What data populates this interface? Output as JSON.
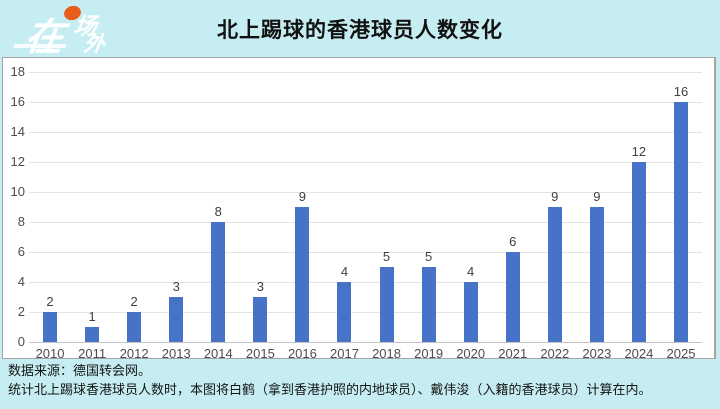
{
  "logo": {
    "char_main": "在",
    "char_2": "场",
    "char_3": "外"
  },
  "header": {
    "title": "北上踢球的香港球员人数变化"
  },
  "chart_data": {
    "type": "bar",
    "title": "北上踢球的香港球员人数变化",
    "categories": [
      "2010",
      "2011",
      "2012",
      "2013",
      "2014",
      "2015",
      "2016",
      "2017",
      "2018",
      "2019",
      "2020",
      "2021",
      "2022",
      "2023",
      "2024",
      "2025"
    ],
    "values": [
      2,
      1,
      2,
      3,
      8,
      3,
      9,
      4,
      5,
      5,
      4,
      6,
      9,
      9,
      12,
      16
    ],
    "xlabel": "",
    "ylabel": "",
    "ylim": [
      0,
      18
    ],
    "ytick_step": 2,
    "grid": true,
    "legend": false,
    "value_labels": true
  },
  "footer": {
    "line1": "数据来源：德国转会网。",
    "line2": "统计北上踢球香港球员人数时，本图将白鹤（拿到香港护照的内地球员）、戴伟浚（入籍的香港球员）计算在内。"
  },
  "colors": {
    "background": "#C6EEF2",
    "panel": "#FFFFFF",
    "bar": "#4673C8",
    "grid": "#E3E3E3",
    "logo_dot": "#E85D1A"
  }
}
